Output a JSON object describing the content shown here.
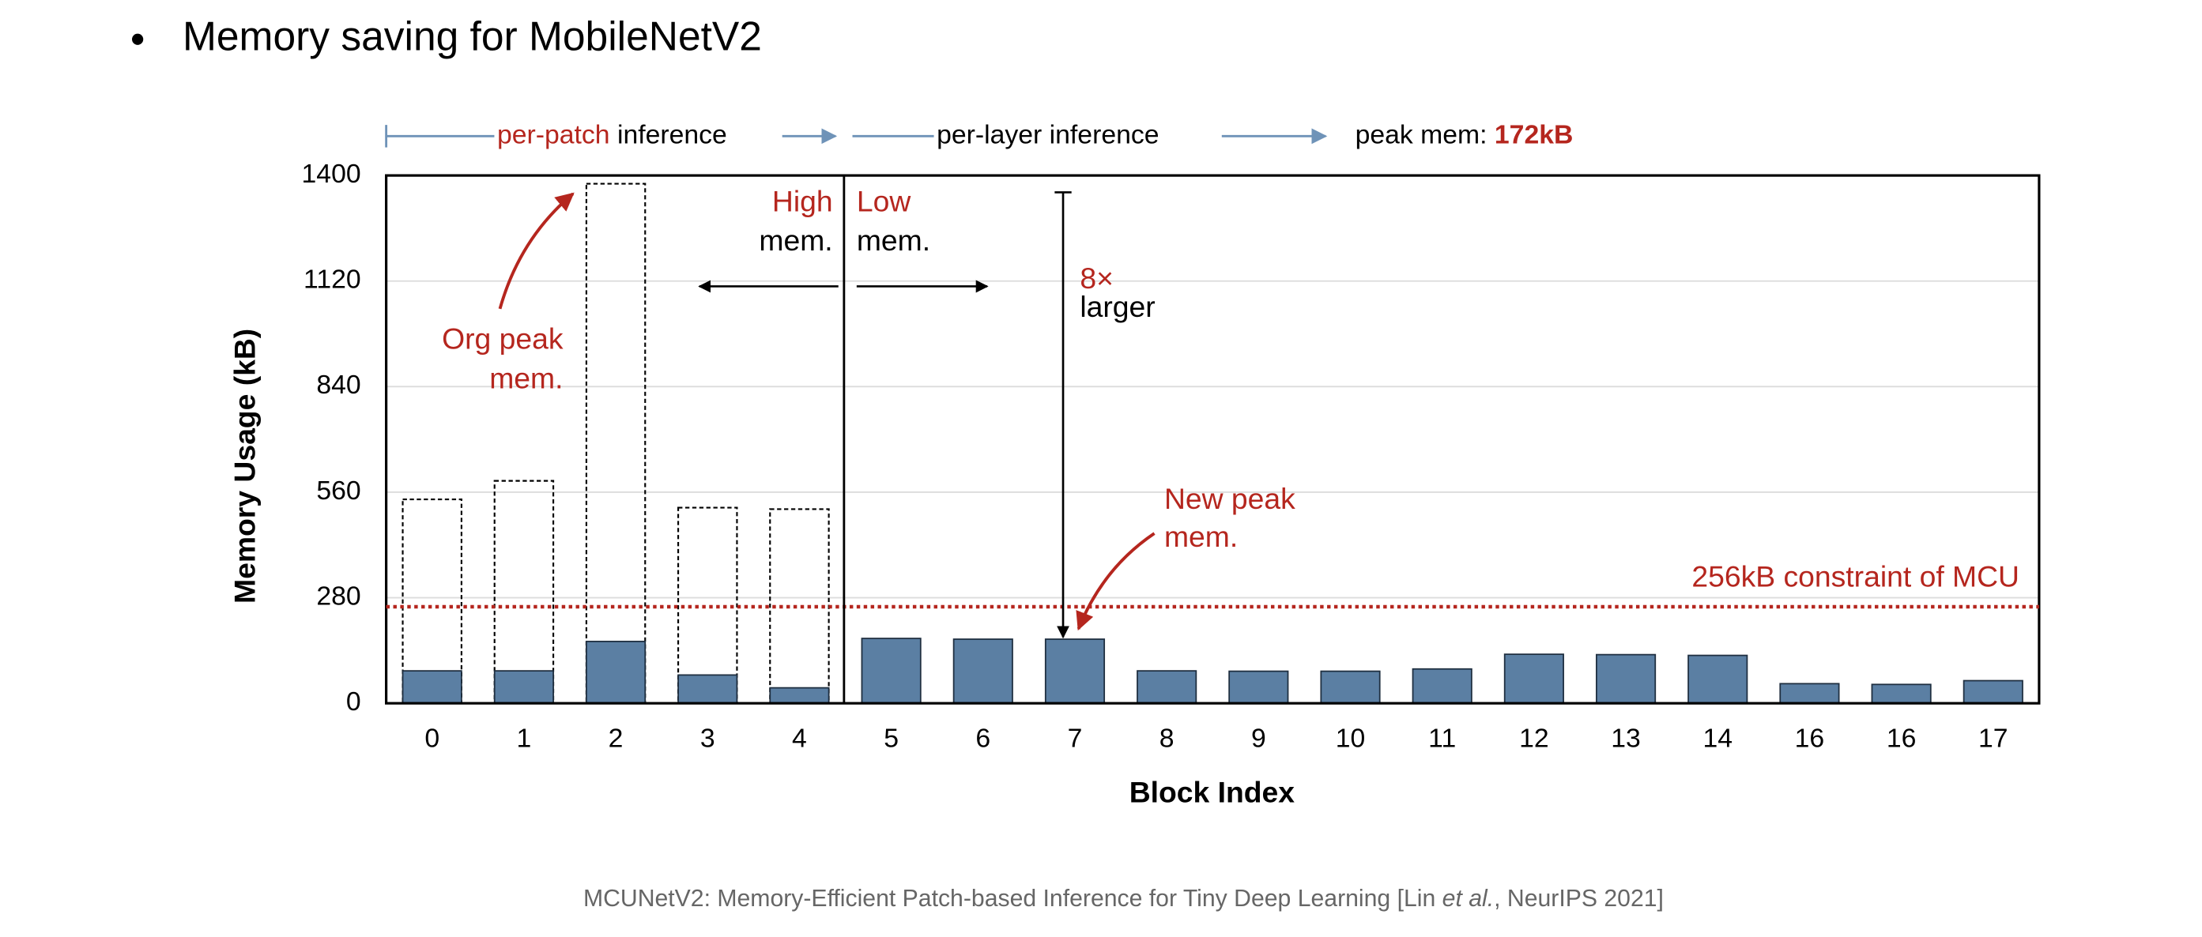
{
  "chart_data": {
    "type": "bar",
    "title": "Memory saving for MobileNetV2",
    "x_label": "Block Index",
    "y_label": "Memory Usage (kB)",
    "categories": [
      "0",
      "1",
      "2",
      "3",
      "4",
      "5",
      "6",
      "7",
      "8",
      "9",
      "10",
      "11",
      "12",
      "13",
      "14",
      "16",
      "16",
      "17"
    ],
    "series": [
      {
        "color": "#5b7fa3",
        "style": "solid",
        "values": [
          86,
          86,
          164,
          75,
          41,
          172,
          170,
          170,
          86,
          85,
          85,
          91,
          130,
          129,
          127,
          52,
          50,
          60
        ]
      },
      {
        "color": "#000000",
        "style": "dashed",
        "values": [
          541,
          590,
          1378,
          519,
          515,
          null,
          null,
          null,
          null,
          null,
          null,
          null,
          null,
          null,
          null,
          null,
          null,
          null
        ]
      }
    ],
    "ylim": [
      0,
      1400
    ],
    "yticks": [
      0,
      280,
      560,
      840,
      1120,
      1400
    ],
    "grid": true,
    "reference_line": {
      "value": 256,
      "label": "256kB constraint of MCU",
      "color": "#b5261e"
    },
    "header": [
      {
        "text": "per-patch",
        "color": "#b5261e"
      },
      {
        "text": " inference",
        "color": "#000000"
      },
      {
        "text": "per-layer inference",
        "color": "#000000"
      },
      {
        "text": "peak mem: ",
        "color": "#000000"
      },
      {
        "text": "172kB",
        "color": "#b5261e"
      }
    ],
    "annotations": [
      {
        "text": "High",
        "color": "#b5261e"
      },
      {
        "text": "mem.",
        "color": "#000000"
      },
      {
        "text": "Low",
        "color": "#b5261e"
      },
      {
        "text": "mem.",
        "color": "#000000"
      },
      {
        "text": "8×",
        "color": "#b5261e"
      },
      {
        "text": "larger",
        "color": "#000000"
      },
      {
        "text": "Org peak",
        "color": "#b5261e"
      },
      {
        "text": "mem.",
        "color": "#b5261e"
      },
      {
        "text": "New peak",
        "color": "#b5261e"
      },
      {
        "text": "mem.",
        "color": "#b5261e"
      }
    ]
  },
  "citation": [
    "MCUNetV2: Memory-Efficient Patch-based Inference for Tiny Deep Learning [Lin ",
    "et al.",
    ", NeurIPS 2021]"
  ]
}
